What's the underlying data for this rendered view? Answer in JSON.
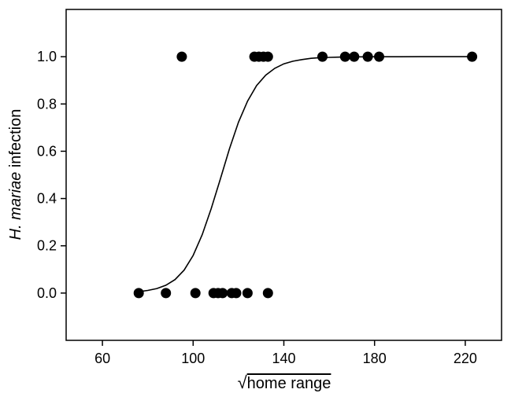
{
  "chart_data": {
    "type": "scatter",
    "title": "",
    "xlabel_symbol": "√",
    "xlabel": "home range",
    "ylabel_italic": "H. mariae",
    "ylabel_rest": " infection",
    "xlim": [
      44,
      236
    ],
    "ylim": [
      -0.2,
      1.2
    ],
    "xticks": [
      60,
      100,
      140,
      180,
      220
    ],
    "yticks": [
      0.0,
      0.2,
      0.4,
      0.6,
      0.8,
      1.0
    ],
    "ytick_labels": [
      "0.0",
      "0.2",
      "0.4",
      "0.6",
      "0.8",
      "1.0"
    ],
    "grid": false,
    "legend": "none",
    "points": [
      {
        "x": 76,
        "y": 0
      },
      {
        "x": 88,
        "y": 0
      },
      {
        "x": 101,
        "y": 0
      },
      {
        "x": 109,
        "y": 0
      },
      {
        "x": 111,
        "y": 0
      },
      {
        "x": 113,
        "y": 0
      },
      {
        "x": 117,
        "y": 0
      },
      {
        "x": 119,
        "y": 0
      },
      {
        "x": 124,
        "y": 0
      },
      {
        "x": 133,
        "y": 0
      },
      {
        "x": 95,
        "y": 1
      },
      {
        "x": 127,
        "y": 1
      },
      {
        "x": 129,
        "y": 1
      },
      {
        "x": 131,
        "y": 1
      },
      {
        "x": 133,
        "y": 1
      },
      {
        "x": 157,
        "y": 1
      },
      {
        "x": 167,
        "y": 1
      },
      {
        "x": 171,
        "y": 1
      },
      {
        "x": 177,
        "y": 1
      },
      {
        "x": 182,
        "y": 1
      },
      {
        "x": 223,
        "y": 1
      }
    ],
    "fit_curve": {
      "type": "logistic",
      "x": [
        76,
        80,
        84,
        88,
        92,
        96,
        100,
        104,
        108,
        112,
        116,
        120,
        124,
        128,
        132,
        136,
        140,
        144,
        148,
        152,
        156,
        160,
        164,
        168,
        172,
        176,
        180,
        190,
        200,
        210,
        223
      ],
      "y": [
        0.006,
        0.011,
        0.019,
        0.033,
        0.057,
        0.097,
        0.159,
        0.247,
        0.358,
        0.483,
        0.61,
        0.723,
        0.812,
        0.878,
        0.922,
        0.951,
        0.97,
        0.981,
        0.988,
        0.993,
        0.996,
        0.997,
        0.998,
        0.999,
        0.9994,
        0.9996,
        0.9998,
        0.9999,
        1.0,
        1.0,
        1.0
      ]
    },
    "colors": {
      "marker": "#000000",
      "line": "#000000",
      "axis": "#000000"
    }
  }
}
